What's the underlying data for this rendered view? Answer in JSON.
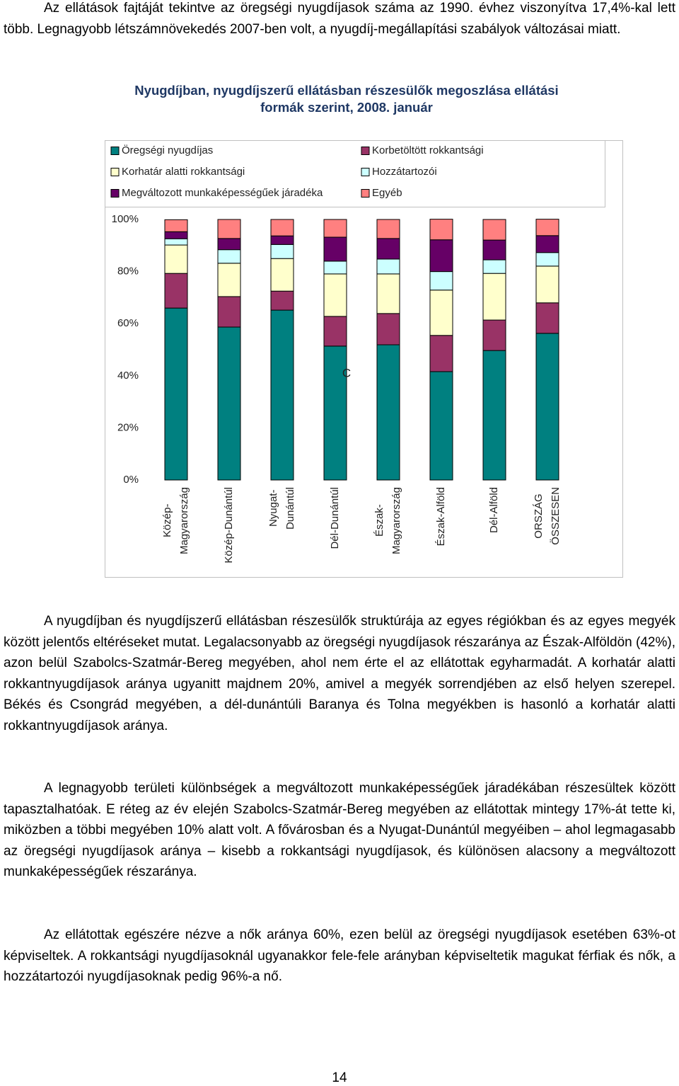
{
  "intro": "Az ellátások fajtáját tekintve az öregségi nyugdíjasok száma az 1990. évhez viszonyítva 17,4%-kal lett több. Legnagyobb létszámnövekedés 2007-ben volt, a nyugdíj-megállapítási szabályok változásai miatt.",
  "chart_data": {
    "type": "stacked_bar_100",
    "title": "Nyugdíjban, nyugdíjszerű ellátásban részesülők megoszlása ellátási formák szerint, 2008. január",
    "categories": [
      "Közép-\nMagyarország",
      "Közép-Dunántúl",
      "Nyugat-\nDunántúl",
      "Dél-Dunántúl",
      "Észak-\nMagyarország",
      "Észak-Alföld",
      "Dél-Alföld",
      "ORSZÁG\nÖSSZESEN"
    ],
    "series": [
      {
        "name": "Öregségi nyugdíjas",
        "color": "#008080",
        "values": [
          66.0,
          58.7,
          65.2,
          51.4,
          51.9,
          41.6,
          49.7,
          56.3
        ]
      },
      {
        "name": "Korbetöltött rokkantsági",
        "color": "#993366",
        "values": [
          13.3,
          11.7,
          7.3,
          11.4,
          12.0,
          13.9,
          11.7,
          11.7
        ]
      },
      {
        "name": "Korhatár alatti rokkantsági",
        "color": "#ffffcc",
        "values": [
          10.9,
          12.8,
          12.5,
          16.3,
          15.2,
          17.4,
          17.9,
          14.1
        ]
      },
      {
        "name": "Hozzátartozói",
        "color": "#ccffff",
        "values": [
          2.4,
          5.2,
          5.4,
          4.9,
          5.7,
          7.1,
          5.2,
          5.2
        ]
      },
      {
        "name": "Megváltozott munkaképességűek járadéka",
        "color": "#660066",
        "values": [
          2.7,
          4.3,
          3.3,
          9.2,
          7.9,
          12.2,
          7.6,
          6.5
        ]
      },
      {
        "name": "Egyéb",
        "color": "#ff8080",
        "values": [
          4.6,
          7.3,
          6.3,
          6.8,
          7.3,
          7.9,
          7.9,
          6.3
        ]
      }
    ],
    "ylim": [
      0,
      100
    ],
    "yticks": [
      {
        "value": 0,
        "label": "0%"
      },
      {
        "value": 20,
        "label": "20%"
      },
      {
        "value": 40,
        "label": "40%"
      },
      {
        "value": 60,
        "label": "60%"
      },
      {
        "value": 80,
        "label": "80%"
      },
      {
        "value": 100,
        "label": "100%"
      }
    ],
    "annotation": "C",
    "legend": "top"
  },
  "paragraphs": [
    "A nyugdíjban és nyugdíjszerű ellátásban részesülők struktúrája az egyes régiókban és az egyes megyék között jelentős eltéréseket mutat. Legalacsonyabb az öregségi nyugdíjasok részaránya az Észak-Alföldön (42%), azon belül Szabolcs-Szatmár-Bereg megyében, ahol nem érte el az ellátottak egyharmadát. A korhatár alatti rokkantnyugdíjasok aránya ugyanitt majdnem 20%, amivel a megyék sorrendjében az első helyen szerepel. Békés és Csongrád megyében, a dél-dunántúli Baranya és Tolna megyékben is hasonló a korhatár alatti rokkantnyugdíjasok aránya.",
    "A legnagyobb területi különbségek a megváltozott munkaképességűek járadékában részesültek között tapasztalhatóak. E réteg az év elején Szabolcs-Szatmár-Bereg megyében az ellátottak mintegy 17%-át tette ki, miközben a többi megyében 10% alatt volt. A fővárosban és a Nyugat-Dunántúl megyéiben – ahol legmagasabb az öregségi nyugdíjasok aránya – kisebb a rokkantsági nyugdíjasok, és különösen alacsony a megváltozott munkaképességűek részaránya.",
    "Az ellátottak egészére nézve a nők aránya 60%, ezen belül az öregségi nyugdíjasok esetében 63%-ot képviseltek. A rokkantsági nyugdíjasoknál ugyanakkor fele-fele arányban képviseltetik magukat férfiak és nők, a hozzátartozói nyugdíjasoknak pedig 96%-a nő."
  ],
  "page_number": "14"
}
